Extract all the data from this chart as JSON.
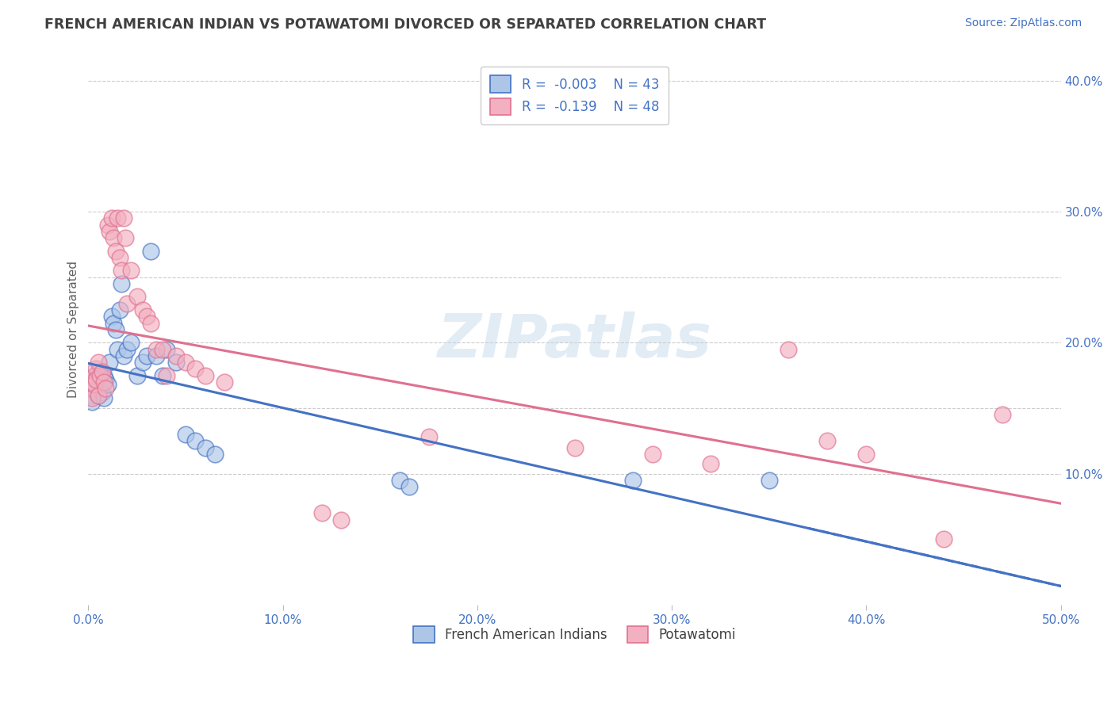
{
  "title": "FRENCH AMERICAN INDIAN VS POTAWATOMI DIVORCED OR SEPARATED CORRELATION CHART",
  "source_text": "Source: ZipAtlas.com",
  "ylabel": "Divorced or Separated",
  "xmin": 0.0,
  "xmax": 0.5,
  "ymin": 0.0,
  "ymax": 0.42,
  "x_tick_labels": [
    "0.0%",
    "10.0%",
    "20.0%",
    "30.0%",
    "40.0%",
    "50.0%"
  ],
  "x_ticks": [
    0.0,
    0.1,
    0.2,
    0.3,
    0.4,
    0.5
  ],
  "y_tick_labels": [
    "10.0%",
    "20.0%",
    "30.0%",
    "40.0%"
  ],
  "y_ticks": [
    0.1,
    0.2,
    0.3,
    0.4
  ],
  "y_gridlines": [
    0.1,
    0.15,
    0.2,
    0.25,
    0.3,
    0.4
  ],
  "blue_R": -0.003,
  "blue_N": 43,
  "pink_R": -0.139,
  "pink_N": 48,
  "blue_color": "#adc6e8",
  "pink_color": "#f2b0c0",
  "blue_line_color": "#4472c4",
  "pink_line_color": "#e07090",
  "blue_scatter": [
    [
      0.001,
      0.17
    ],
    [
      0.001,
      0.165
    ],
    [
      0.002,
      0.16
    ],
    [
      0.002,
      0.155
    ],
    [
      0.003,
      0.175
    ],
    [
      0.003,
      0.168
    ],
    [
      0.004,
      0.172
    ],
    [
      0.004,
      0.163
    ],
    [
      0.005,
      0.178
    ],
    [
      0.005,
      0.16
    ],
    [
      0.006,
      0.17
    ],
    [
      0.006,
      0.165
    ],
    [
      0.007,
      0.162
    ],
    [
      0.008,
      0.175
    ],
    [
      0.008,
      0.158
    ],
    [
      0.009,
      0.172
    ],
    [
      0.01,
      0.168
    ],
    [
      0.011,
      0.185
    ],
    [
      0.012,
      0.22
    ],
    [
      0.013,
      0.215
    ],
    [
      0.014,
      0.21
    ],
    [
      0.015,
      0.195
    ],
    [
      0.016,
      0.225
    ],
    [
      0.017,
      0.245
    ],
    [
      0.018,
      0.19
    ],
    [
      0.02,
      0.195
    ],
    [
      0.022,
      0.2
    ],
    [
      0.025,
      0.175
    ],
    [
      0.028,
      0.185
    ],
    [
      0.03,
      0.19
    ],
    [
      0.032,
      0.27
    ],
    [
      0.035,
      0.19
    ],
    [
      0.038,
      0.175
    ],
    [
      0.04,
      0.195
    ],
    [
      0.045,
      0.185
    ],
    [
      0.05,
      0.13
    ],
    [
      0.055,
      0.125
    ],
    [
      0.06,
      0.12
    ],
    [
      0.065,
      0.115
    ],
    [
      0.16,
      0.095
    ],
    [
      0.165,
      0.09
    ],
    [
      0.28,
      0.095
    ],
    [
      0.35,
      0.095
    ]
  ],
  "pink_scatter": [
    [
      0.001,
      0.165
    ],
    [
      0.002,
      0.158
    ],
    [
      0.002,
      0.17
    ],
    [
      0.003,
      0.175
    ],
    [
      0.003,
      0.168
    ],
    [
      0.004,
      0.18
    ],
    [
      0.004,
      0.172
    ],
    [
      0.005,
      0.185
    ],
    [
      0.005,
      0.16
    ],
    [
      0.006,
      0.175
    ],
    [
      0.007,
      0.178
    ],
    [
      0.008,
      0.17
    ],
    [
      0.009,
      0.165
    ],
    [
      0.01,
      0.29
    ],
    [
      0.011,
      0.285
    ],
    [
      0.012,
      0.295
    ],
    [
      0.013,
      0.28
    ],
    [
      0.014,
      0.27
    ],
    [
      0.015,
      0.295
    ],
    [
      0.016,
      0.265
    ],
    [
      0.017,
      0.255
    ],
    [
      0.018,
      0.295
    ],
    [
      0.019,
      0.28
    ],
    [
      0.02,
      0.23
    ],
    [
      0.022,
      0.255
    ],
    [
      0.025,
      0.235
    ],
    [
      0.028,
      0.225
    ],
    [
      0.03,
      0.22
    ],
    [
      0.032,
      0.215
    ],
    [
      0.035,
      0.195
    ],
    [
      0.038,
      0.195
    ],
    [
      0.04,
      0.175
    ],
    [
      0.045,
      0.19
    ],
    [
      0.05,
      0.185
    ],
    [
      0.055,
      0.18
    ],
    [
      0.06,
      0.175
    ],
    [
      0.07,
      0.17
    ],
    [
      0.12,
      0.07
    ],
    [
      0.13,
      0.065
    ],
    [
      0.175,
      0.128
    ],
    [
      0.25,
      0.12
    ],
    [
      0.29,
      0.115
    ],
    [
      0.32,
      0.108
    ],
    [
      0.36,
      0.195
    ],
    [
      0.38,
      0.125
    ],
    [
      0.4,
      0.115
    ],
    [
      0.44,
      0.05
    ],
    [
      0.47,
      0.145
    ]
  ],
  "watermark_text": "ZIPatlas",
  "background_color": "#ffffff",
  "grid_color": "#cccccc",
  "title_color": "#404040",
  "axis_label_color": "#606060",
  "tick_label_color": "#4472c4",
  "legend_label_color": "#404040"
}
